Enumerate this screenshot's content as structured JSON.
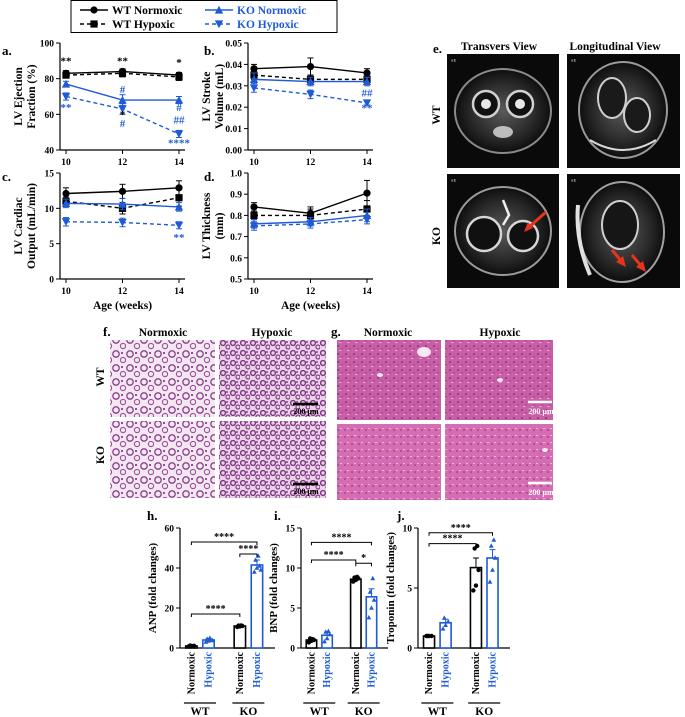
{
  "legend": {
    "items": [
      {
        "name": "WT Normoxic",
        "color": "#000000",
        "marker": "circle",
        "dash": false
      },
      {
        "name": "KO Normoxic",
        "color": "#1f5bd6",
        "marker": "triangle-up",
        "dash": false
      },
      {
        "name": "WT Hypoxic",
        "color": "#000000",
        "marker": "square",
        "dash": true
      },
      {
        "name": "KO Hypoxic",
        "color": "#1f5bd6",
        "marker": "triangle-down",
        "dash": true
      }
    ]
  },
  "colors": {
    "wt": "#000000",
    "ko": "#1f5bd6",
    "arrow": "#e8341c",
    "he_lung": "#b678b4",
    "he_liver": "#c0579c"
  },
  "line_panels": [
    {
      "id": "a",
      "letter": "a.",
      "ylabel": "LV Ejection Fraction (%)",
      "yticks": [
        40,
        60,
        80,
        100
      ],
      "ylim": [
        40,
        100
      ],
      "show_xlabel": false,
      "annotations": [
        {
          "text": "**",
          "x": 10,
          "y": 88,
          "color": "#000000"
        },
        {
          "text": "**",
          "x": 12,
          "y": 88,
          "color": "#000000"
        },
        {
          "text": "*",
          "x": 14,
          "y": 87,
          "color": "#000000"
        },
        {
          "text": "#",
          "x": 12,
          "y": 72,
          "color": "#1f5bd6"
        },
        {
          "text": "*",
          "x": 12,
          "y": 58,
          "color": "#000000"
        },
        {
          "text": "#",
          "x": 12,
          "y": 53,
          "color": "#1f5bd6"
        },
        {
          "text": "**",
          "x": 10,
          "y": 62,
          "color": "#1f5bd6"
        },
        {
          "text": "#",
          "x": 14,
          "y": 62,
          "color": "#1f5bd6"
        },
        {
          "text": "##",
          "x": 14,
          "y": 55,
          "color": "#1f5bd6"
        },
        {
          "text": "****",
          "x": 14,
          "y": 42,
          "color": "#1f5bd6"
        }
      ]
    },
    {
      "id": "b",
      "letter": "b.",
      "ylabel": "LV Stroke Volume (mL)",
      "yticks": [
        0.0,
        0.01,
        0.02,
        0.03,
        0.04,
        0.05
      ],
      "ylim": [
        0,
        0.05
      ],
      "show_xlabel": false,
      "annotations": [
        {
          "text": "*",
          "x": 12,
          "y": 0.025,
          "color": "#1f5bd6"
        },
        {
          "text": "##",
          "x": 14,
          "y": 0.025,
          "color": "#1f5bd6"
        },
        {
          "text": "**",
          "x": 14,
          "y": 0.018,
          "color": "#1f5bd6"
        }
      ]
    },
    {
      "id": "c",
      "letter": "c.",
      "ylabel": "LV Cardiac Output (mL/min)",
      "yticks": [
        0,
        5,
        10,
        15
      ],
      "ylim": [
        0,
        15
      ],
      "show_xlabel": true,
      "annotations": [
        {
          "text": "**",
          "x": 14,
          "y": 5.4,
          "color": "#1f5bd6"
        }
      ]
    },
    {
      "id": "d",
      "letter": "d.",
      "ylabel": "LV Thickness (mm)",
      "yticks": [
        0.5,
        0.6,
        0.7,
        0.8,
        0.9,
        1.0
      ],
      "ylim": [
        0.5,
        1.0
      ],
      "show_xlabel": true,
      "annotations": []
    }
  ],
  "chart_data": [
    {
      "panel": "a",
      "type": "line",
      "x": [
        10,
        12,
        14
      ],
      "xlabel": "",
      "ylabel": "LV Ejection Fraction (%)",
      "ylim": [
        40,
        100
      ],
      "series": [
        {
          "name": "WT Normoxic",
          "values": [
            83,
            84,
            82
          ],
          "err": [
            1.5,
            1.5,
            1.5
          ]
        },
        {
          "name": "WT Hypoxic",
          "values": [
            82,
            83,
            81
          ],
          "err": [
            1.5,
            2,
            2
          ]
        },
        {
          "name": "KO Normoxic",
          "values": [
            77,
            68,
            68
          ],
          "err": [
            1.5,
            3,
            2
          ]
        },
        {
          "name": "KO Hypoxic",
          "values": [
            70,
            63,
            49
          ],
          "err": [
            2,
            3,
            2
          ]
        }
      ]
    },
    {
      "panel": "b",
      "type": "line",
      "x": [
        10,
        12,
        14
      ],
      "xlabel": "",
      "ylabel": "LV Stroke Volume (mL)",
      "ylim": [
        0,
        0.05
      ],
      "series": [
        {
          "name": "WT Normoxic",
          "values": [
            0.038,
            0.039,
            0.036
          ],
          "err": [
            0.002,
            0.004,
            0.002
          ]
        },
        {
          "name": "WT Hypoxic",
          "values": [
            0.035,
            0.033,
            0.033
          ],
          "err": [
            0.002,
            0.002,
            0.002
          ]
        },
        {
          "name": "KO Normoxic",
          "values": [
            0.033,
            0.032,
            0.032
          ],
          "err": [
            0.003,
            0.002,
            0.002
          ]
        },
        {
          "name": "KO Hypoxic",
          "values": [
            0.029,
            0.026,
            0.022
          ],
          "err": [
            0.002,
            0.002,
            0.001
          ]
        }
      ]
    },
    {
      "panel": "c",
      "type": "line",
      "x": [
        10,
        12,
        14
      ],
      "xlabel": "Age (weeks)",
      "ylabel": "LV Cardiac Output (mL/min)",
      "ylim": [
        0,
        15
      ],
      "series": [
        {
          "name": "WT Normoxic",
          "values": [
            12.1,
            12.4,
            12.9
          ],
          "err": [
            0.8,
            1,
            1
          ]
        },
        {
          "name": "WT Hypoxic",
          "values": [
            11.0,
            10.0,
            11.5
          ],
          "err": [
            0.6,
            0.8,
            1.2
          ]
        },
        {
          "name": "KO Normoxic",
          "values": [
            10.7,
            10.6,
            10.2
          ],
          "err": [
            0.6,
            0.8,
            0.6
          ]
        },
        {
          "name": "KO Hypoxic",
          "values": [
            8.1,
            8.0,
            7.6
          ],
          "err": [
            0.6,
            0.6,
            0.5
          ]
        }
      ]
    },
    {
      "panel": "d",
      "type": "line",
      "x": [
        10,
        12,
        14
      ],
      "xlabel": "Age (weeks)",
      "ylabel": "LV Thickness (mm)",
      "ylim": [
        0.5,
        1.0
      ],
      "series": [
        {
          "name": "WT Normoxic",
          "values": [
            0.84,
            0.81,
            0.905
          ],
          "err": [
            0.02,
            0.03,
            0.06
          ]
        },
        {
          "name": "WT Hypoxic",
          "values": [
            0.8,
            0.8,
            0.83
          ],
          "err": [
            0.02,
            0.03,
            0.04
          ]
        },
        {
          "name": "KO Normoxic",
          "values": [
            0.76,
            0.77,
            0.8
          ],
          "err": [
            0.02,
            0.02,
            0.03
          ]
        },
        {
          "name": "KO Hypoxic",
          "values": [
            0.75,
            0.76,
            0.78
          ],
          "err": [
            0.02,
            0.02,
            0.02
          ]
        }
      ]
    },
    {
      "panel": "h",
      "type": "bar",
      "categories": [
        "Normoxic",
        "Hypoxic",
        "Normoxic",
        "Hypoxic"
      ],
      "groups": [
        "WT",
        "KO"
      ],
      "ylabel": "ANP (fold changes)",
      "ylim": [
        0,
        60
      ],
      "values": [
        1.0,
        4.0,
        11.0,
        41.5
      ],
      "err": [
        0.3,
        0.7,
        0.5,
        2.5
      ],
      "points": [
        [
          0.8,
          1.0,
          1.1,
          1.2,
          0.9
        ],
        [
          3.0,
          3.5,
          4.0,
          4.5,
          5.0,
          3.8
        ],
        [
          10.5,
          10.8,
          11.0,
          11.2,
          11.3
        ],
        [
          38.0,
          40.0,
          41.0,
          44.0,
          46.0,
          39.0
        ]
      ],
      "brackets": [
        {
          "from": 0,
          "to": 2,
          "text": "****",
          "y": 17
        },
        {
          "from": 0,
          "to": 3,
          "text": "****",
          "y": 53
        },
        {
          "from": 2,
          "to": 3,
          "text": "****",
          "y": 47
        }
      ]
    },
    {
      "panel": "i",
      "type": "bar",
      "categories": [
        "Normoxic",
        "Hypoxic",
        "Normoxic",
        "Hypoxic"
      ],
      "groups": [
        "WT",
        "KO"
      ],
      "ylabel": "BNP (fold changes)",
      "ylim": [
        0,
        15
      ],
      "values": [
        1.0,
        1.6,
        8.6,
        6.4
      ],
      "err": [
        0.2,
        0.4,
        0.2,
        1.0
      ],
      "points": [
        [
          0.7,
          0.9,
          1.0,
          1.2,
          1.1
        ],
        [
          0.8,
          1.2,
          1.7,
          2.0,
          2.1
        ],
        [
          8.3,
          8.5,
          8.7,
          8.8,
          8.9
        ],
        [
          3.8,
          5.0,
          6.0,
          7.0,
          8.7
        ]
      ],
      "brackets": [
        {
          "from": 0,
          "to": 2,
          "text": "****",
          "y": 11.0
        },
        {
          "from": 0,
          "to": 3,
          "text": "****",
          "y": 13.2
        },
        {
          "from": 2,
          "to": 3,
          "text": "*",
          "y": 10.6
        }
      ]
    },
    {
      "panel": "j",
      "type": "bar",
      "categories": [
        "Normoxic",
        "Hypoxic",
        "Normoxic",
        "Hypoxic"
      ],
      "groups": [
        "WT",
        "KO"
      ],
      "ylabel": "Troponin (fold changes)",
      "ylim": [
        0,
        10
      ],
      "values": [
        1.0,
        2.1,
        6.7,
        7.5
      ],
      "err": [
        0.05,
        0.3,
        0.8,
        0.7
      ],
      "points": [
        [
          1.0,
          1.0,
          1.0,
          1.0
        ],
        [
          1.6,
          1.9,
          2.2,
          2.5
        ],
        [
          4.8,
          5.2,
          6.5,
          8.3,
          8.5
        ],
        [
          5.5,
          6.5,
          7.5,
          8.5,
          9.0
        ]
      ],
      "brackets": [
        {
          "from": 0,
          "to": 2,
          "text": "****",
          "y": 8.7
        },
        {
          "from": 0,
          "to": 3,
          "text": "****",
          "y": 9.6
        }
      ]
    }
  ],
  "mri": {
    "letter": "e.",
    "col_titles": [
      "Transvers View",
      "Longitudinal View"
    ],
    "row_labels": [
      "WT",
      "KO"
    ],
    "overlay_texts": [
      "SE",
      "SE",
      "SE",
      "SE"
    ]
  },
  "histo_f": {
    "letter": "f.",
    "col_titles": [
      "Normoxic",
      "Hypoxic"
    ],
    "row_labels": [
      "WT",
      "KO"
    ],
    "scale": "200 µm"
  },
  "histo_g": {
    "letter": "g.",
    "col_titles": [
      "Normoxic",
      "Hypoxic"
    ],
    "scale": "200 µm"
  },
  "bar_letters": {
    "h": "h.",
    "i": "i.",
    "j": "j."
  },
  "x_axis_title": "Age (weeks)"
}
